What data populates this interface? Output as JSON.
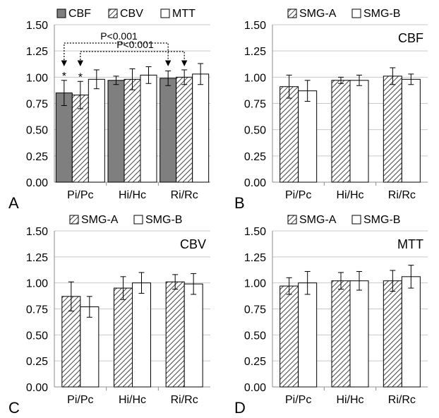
{
  "chart_data": [
    {
      "panel_label": "A",
      "type": "bar",
      "title": "",
      "categories": [
        "Pi/Pc",
        "Hi/Hc",
        "Ri/Rc"
      ],
      "series": [
        {
          "name": "CBF",
          "style": "gray",
          "values": [
            0.85,
            0.97,
            0.99
          ],
          "errors": [
            0.12,
            0.04,
            0.07
          ]
        },
        {
          "name": "CBV",
          "style": "hatch",
          "values": [
            0.83,
            0.98,
            1.0
          ],
          "errors": [
            0.13,
            0.1,
            0.07
          ]
        },
        {
          "name": "MTT",
          "style": "white",
          "values": [
            0.98,
            1.02,
            1.03
          ],
          "errors": [
            0.09,
            0.08,
            0.1
          ]
        }
      ],
      "yticks": [
        "0.00",
        "0.25",
        "0.50",
        "0.75",
        "1.00",
        "1.25",
        "1.50"
      ],
      "ylim": [
        0,
        1.5
      ],
      "grid": true,
      "legend": "top",
      "stars": [
        {
          "category": 0,
          "series": 0,
          "text": "*"
        },
        {
          "category": 0,
          "series": 1,
          "text": "*"
        }
      ],
      "annotations": [
        {
          "text": "P<0.001",
          "from": [
            0,
            0
          ],
          "to": [
            2,
            0
          ]
        },
        {
          "text": "P<0.001",
          "from": [
            0,
            1
          ],
          "to": [
            2,
            1
          ]
        }
      ]
    },
    {
      "panel_label": "B",
      "type": "bar",
      "title": "CBF",
      "categories": [
        "Pi/Pc",
        "Hi/Hc",
        "Ri/Rc"
      ],
      "series": [
        {
          "name": "SMG-A",
          "style": "hatch",
          "values": [
            0.91,
            0.97,
            1.01
          ],
          "errors": [
            0.11,
            0.03,
            0.08
          ]
        },
        {
          "name": "SMG-B",
          "style": "white",
          "values": [
            0.87,
            0.97,
            0.98
          ],
          "errors": [
            0.1,
            0.05,
            0.05
          ]
        }
      ],
      "yticks": [
        "0.00",
        "0.25",
        "0.50",
        "0.75",
        "1.00",
        "1.25",
        "1.50"
      ],
      "ylim": [
        0,
        1.5
      ],
      "grid": true,
      "legend": "top"
    },
    {
      "panel_label": "C",
      "type": "bar",
      "title": "CBV",
      "categories": [
        "Pi/Pc",
        "Hi/Hc",
        "Ri/Rc"
      ],
      "series": [
        {
          "name": "SMG-A",
          "style": "hatch",
          "values": [
            0.87,
            0.95,
            1.01
          ],
          "errors": [
            0.14,
            0.11,
            0.07
          ]
        },
        {
          "name": "SMG-B",
          "style": "white",
          "values": [
            0.77,
            1.0,
            0.99
          ],
          "errors": [
            0.1,
            0.1,
            0.1
          ]
        }
      ],
      "yticks": [
        "0.00",
        "0.25",
        "0.50",
        "0.75",
        "1.00",
        "1.25",
        "1.50"
      ],
      "ylim": [
        0,
        1.5
      ],
      "grid": true,
      "legend": "top"
    },
    {
      "panel_label": "D",
      "type": "bar",
      "title": "MTT",
      "categories": [
        "Pi/Pc",
        "Hi/Hc",
        "Ri/Rc"
      ],
      "series": [
        {
          "name": "SMG-A",
          "style": "hatch",
          "values": [
            0.97,
            1.02,
            1.02
          ],
          "errors": [
            0.08,
            0.08,
            0.1
          ]
        },
        {
          "name": "SMG-B",
          "style": "white",
          "values": [
            1.0,
            1.02,
            1.06
          ],
          "errors": [
            0.11,
            0.09,
            0.11
          ]
        }
      ],
      "yticks": [
        "0.00",
        "0.25",
        "0.50",
        "0.75",
        "1.00",
        "1.25",
        "1.50"
      ],
      "ylim": [
        0,
        1.5
      ],
      "grid": true,
      "legend": "top"
    }
  ],
  "colors": {
    "gray_fill": "#7f7f7f",
    "bar_stroke": "#000000",
    "hatch_line": "#444444",
    "grid": "#c9c9c9",
    "axis": "#8c8c8c"
  }
}
